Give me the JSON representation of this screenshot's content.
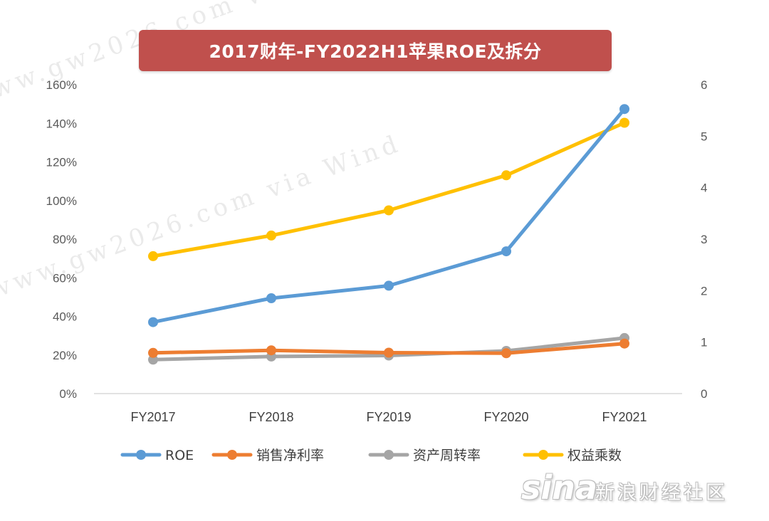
{
  "chart_data": {
    "type": "line",
    "title": "2017财年-FY2022H1苹果ROE及拆分",
    "categories": [
      "FY2017",
      "FY2018",
      "FY2019",
      "FY2020",
      "FY2021"
    ],
    "y_left": {
      "range": [
        0,
        160
      ],
      "unit": "%",
      "ticks": [
        "0%",
        "20%",
        "40%",
        "60%",
        "80%",
        "100%",
        "120%",
        "140%",
        "160%"
      ]
    },
    "y_right": {
      "range": [
        0,
        6
      ],
      "ticks": [
        "0",
        "1",
        "2",
        "3",
        "4",
        "5",
        "6"
      ]
    },
    "grid": false,
    "legend_position": "bottom",
    "series": [
      {
        "name": "ROE",
        "axis": "left",
        "color": "#5b9bd5",
        "values": [
          37,
          49.4,
          55.9,
          73.7,
          147.4
        ]
      },
      {
        "name": "销售净利率",
        "axis": "left",
        "color": "#ed7d31",
        "values": [
          21.1,
          22.4,
          21.2,
          20.9,
          25.9
        ]
      },
      {
        "name": "资产周转率",
        "axis": "right",
        "color": "#a5a5a5",
        "values": [
          0.66,
          0.72,
          0.74,
          0.83,
          1.08
        ]
      },
      {
        "name": "权益乘数",
        "axis": "right",
        "color": "#ffc000",
        "values": [
          2.67,
          3.07,
          3.56,
          4.24,
          5.26
        ]
      }
    ]
  },
  "watermark": {
    "text": "www.gw2026.com via Wind"
  },
  "branding": {
    "logo_word": "sina",
    "logo_text": "新浪财经社区"
  }
}
